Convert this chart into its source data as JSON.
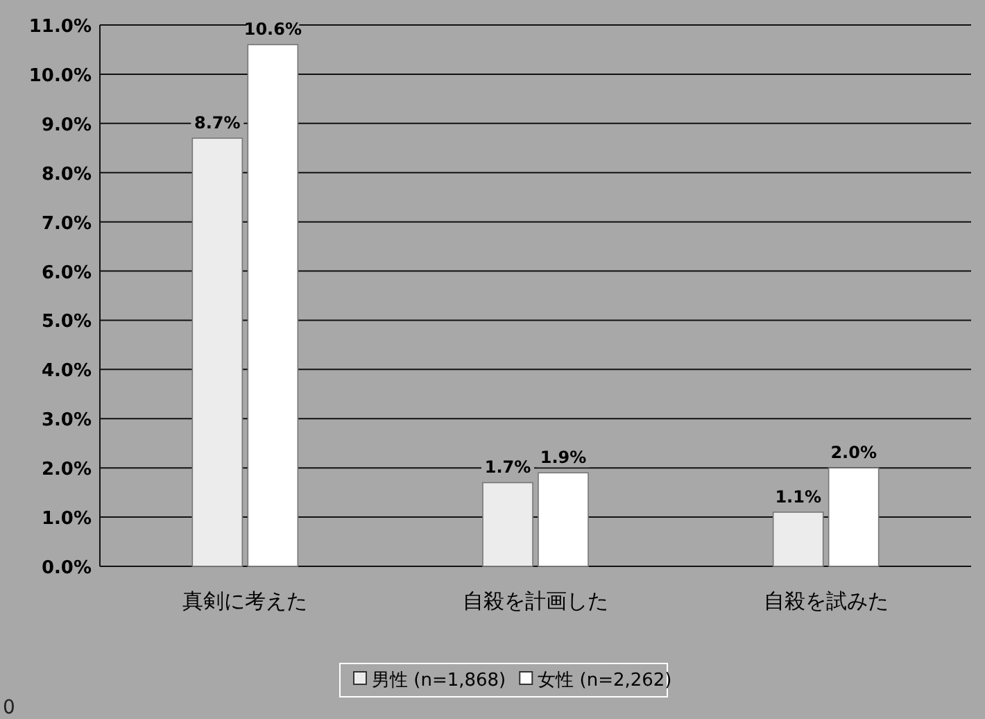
{
  "chart_data": {
    "type": "bar",
    "categories": [
      "真剣に考えた",
      "自殺を計画した",
      "自殺を試みた"
    ],
    "series": [
      {
        "name": "男性 (n=1,868)",
        "color": "#ececec",
        "values": [
          8.7,
          1.7,
          1.1
        ],
        "value_labels": [
          "8.7%",
          "1.7%",
          "1.1%"
        ]
      },
      {
        "name": "女性 (n=2,262)",
        "color": "#ffffff",
        "values": [
          10.6,
          1.9,
          2.0
        ],
        "value_labels": [
          "10.6%",
          "1.9%",
          "2.0%"
        ]
      }
    ],
    "ylim": [
      0,
      11
    ],
    "yticks": [
      {
        "value": 0,
        "label": "0.0%"
      },
      {
        "value": 1,
        "label": "1.0%"
      },
      {
        "value": 2,
        "label": "2.0%"
      },
      {
        "value": 3,
        "label": "3.0%"
      },
      {
        "value": 4,
        "label": "4.0%"
      },
      {
        "value": 5,
        "label": "5.0%"
      },
      {
        "value": 6,
        "label": "6.0%"
      },
      {
        "value": 7,
        "label": "7.0%"
      },
      {
        "value": 8,
        "label": "8.0%"
      },
      {
        "value": 9,
        "label": "9.0%"
      },
      {
        "value": 10,
        "label": "10.0%"
      },
      {
        "value": 11,
        "label": "11.0%"
      }
    ],
    "grid": "y",
    "legend": "bottom",
    "annotations": [
      "0"
    ]
  }
}
